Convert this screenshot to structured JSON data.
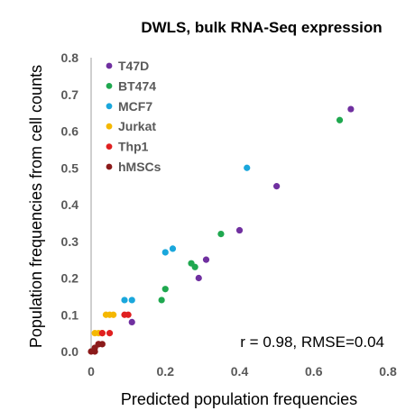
{
  "chart_data": {
    "type": "scatter",
    "title": "DWLS, bulk RNA-Seq expression",
    "xlabel": "Predicted population frequencies",
    "ylabel": "Population frequencies from cell counts",
    "xlim": [
      0,
      0.8
    ],
    "ylim": [
      0,
      0.8
    ],
    "x_ticks": [
      "0",
      "0.2",
      "0.4",
      "0.6",
      "0.8"
    ],
    "y_ticks": [
      "0.0",
      "0.1",
      "0.2",
      "0.3",
      "0.4",
      "0.5",
      "0.6",
      "0.7",
      "0.8"
    ],
    "grid": false,
    "legend_position": "top-left",
    "annotation": "r = 0.98, RMSE=0.04",
    "series": [
      {
        "name": "T47D",
        "color": "#7030a0",
        "points": [
          [
            0.7,
            0.66
          ],
          [
            0.5,
            0.45
          ],
          [
            0.4,
            0.33
          ],
          [
            0.31,
            0.25
          ],
          [
            0.29,
            0.2
          ],
          [
            0.11,
            0.08
          ]
        ]
      },
      {
        "name": "BT474",
        "color": "#1fa84f",
        "points": [
          [
            0.67,
            0.63
          ],
          [
            0.35,
            0.32
          ],
          [
            0.27,
            0.24
          ],
          [
            0.28,
            0.23
          ],
          [
            0.2,
            0.17
          ],
          [
            0.19,
            0.14
          ]
        ]
      },
      {
        "name": "MCF7",
        "color": "#1aa7dc",
        "points": [
          [
            0.42,
            0.5
          ],
          [
            0.22,
            0.28
          ],
          [
            0.2,
            0.27
          ],
          [
            0.09,
            0.14
          ],
          [
            0.11,
            0.14
          ]
        ]
      },
      {
        "name": "Jurkat",
        "color": "#f5b800",
        "points": [
          [
            0.01,
            0.05
          ],
          [
            0.02,
            0.05
          ],
          [
            0.03,
            0.05
          ],
          [
            0.04,
            0.1
          ],
          [
            0.05,
            0.1
          ],
          [
            0.06,
            0.1
          ]
        ]
      },
      {
        "name": "Thp1",
        "color": "#e02020",
        "points": [
          [
            0.03,
            0.05
          ],
          [
            0.05,
            0.05
          ],
          [
            0.09,
            0.1
          ],
          [
            0.1,
            0.1
          ],
          [
            0.02,
            0.02
          ]
        ]
      },
      {
        "name": "hMSCs",
        "color": "#8b1a1a",
        "points": [
          [
            0.0,
            0.0
          ],
          [
            0.01,
            0.01
          ],
          [
            0.02,
            0.02
          ],
          [
            0.01,
            0.0
          ],
          [
            0.03,
            0.02
          ]
        ]
      }
    ]
  }
}
